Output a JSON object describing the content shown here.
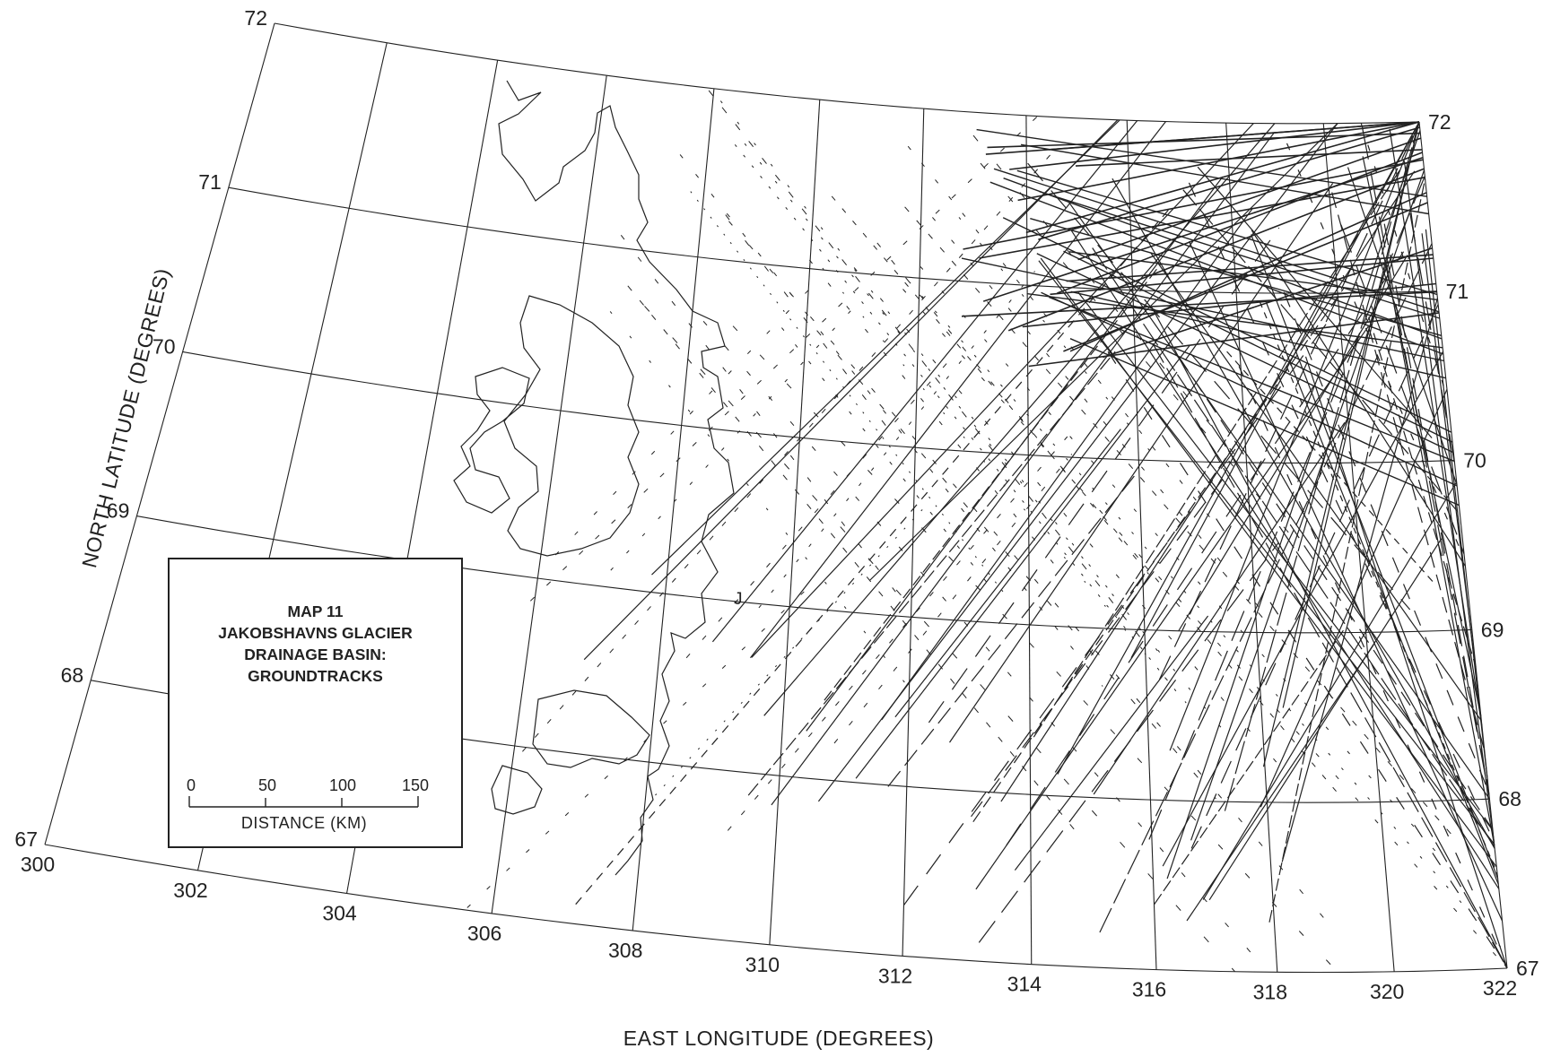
{
  "map": {
    "title_lines": [
      "MAP 11",
      "JAKOBSHAVNS GLACIER",
      "DRAINAGE BASIN:",
      "GROUNDTRACKS"
    ],
    "x_axis_title": "EAST LONGITUDE (DEGREES)",
    "y_axis_title": "NORTH LATITUDE (DEGREES)",
    "lat_labels_left": [
      "72",
      "71",
      "70",
      "69",
      "68",
      "67"
    ],
    "lat_labels_right": [
      "72",
      "71",
      "70",
      "69",
      "68",
      "67"
    ],
    "lon_labels": [
      "300",
      "302",
      "304",
      "306",
      "308",
      "310",
      "312",
      "314",
      "316",
      "318",
      "320",
      "322"
    ],
    "place_marker": "J",
    "scale": {
      "ticks": [
        "0",
        "50",
        "100",
        "150"
      ],
      "unit_label": "DISTANCE (KM)"
    },
    "line_color": "#222222"
  }
}
